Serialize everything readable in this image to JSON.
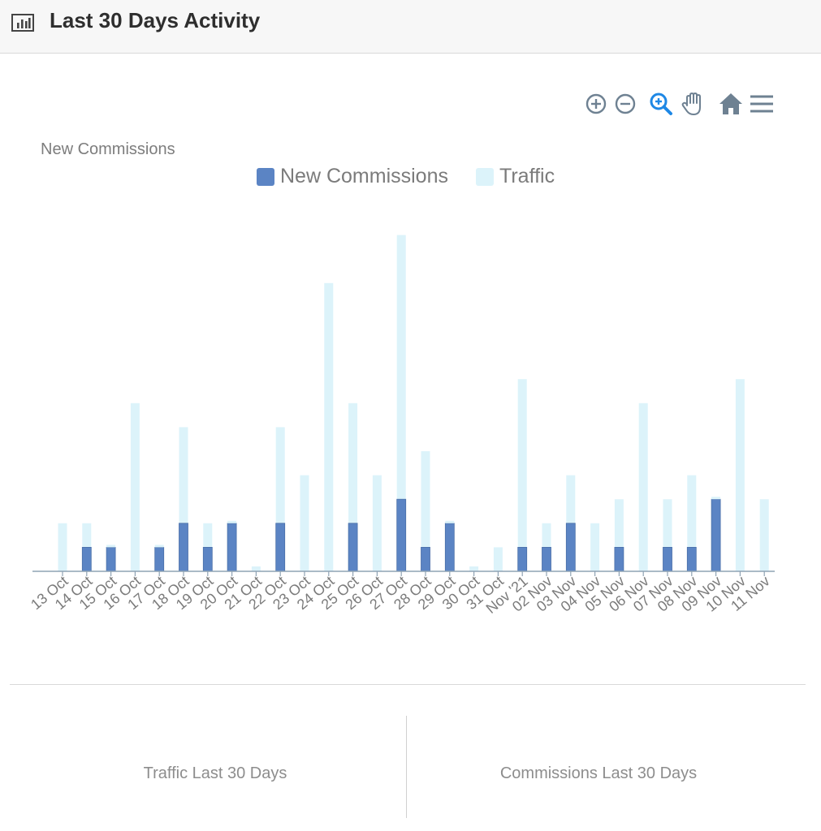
{
  "header": {
    "title": "Last 30 Days Activity",
    "icon": "bar-chart-icon"
  },
  "toolbar": {
    "icons": [
      "zoom-in-icon",
      "zoom-out-icon",
      "selection-zoom-icon",
      "pan-icon",
      "reset-home-icon",
      "menu-icon"
    ],
    "active_icon": "selection-zoom-icon"
  },
  "chart_data": {
    "type": "bar",
    "stacked": true,
    "title": "New Commissions",
    "legend_position": "top-center",
    "grid": false,
    "categories": [
      "13 Oct",
      "14 Oct",
      "15 Oct",
      "16 Oct",
      "17 Oct",
      "18 Oct",
      "19 Oct",
      "20 Oct",
      "21 Oct",
      "22 Oct",
      "23 Oct",
      "24 Oct",
      "25 Oct",
      "26 Oct",
      "27 Oct",
      "28 Oct",
      "29 Oct",
      "30 Oct",
      "31 Oct",
      "Nov '21",
      "02 Nov",
      "03 Nov",
      "04 Nov",
      "05 Nov",
      "06 Nov",
      "07 Nov",
      "08 Nov",
      "09 Nov",
      "10 Nov",
      "11 Nov"
    ],
    "series": [
      {
        "name": "New Commissions",
        "color": "#5b84c4",
        "values": [
          0,
          1,
          1,
          0,
          1,
          2,
          1,
          2,
          0,
          2,
          0,
          0,
          2,
          0,
          3,
          1,
          2,
          0,
          0,
          1,
          1,
          2,
          0,
          1,
          0,
          1,
          1,
          3,
          0,
          0
        ]
      },
      {
        "name": "Traffic",
        "color": "#dcf3fa",
        "values": [
          2,
          1,
          0,
          7,
          0,
          4,
          1,
          0,
          0,
          4,
          4,
          12,
          5,
          4,
          11,
          4,
          0,
          0,
          1,
          7,
          1,
          2,
          2,
          2,
          7,
          2,
          3,
          0,
          8,
          3
        ]
      }
    ]
  },
  "stats": {
    "traffic_label": "Traffic Last 30 Days",
    "commissions_label": "Commissions Last 30 Days"
  }
}
